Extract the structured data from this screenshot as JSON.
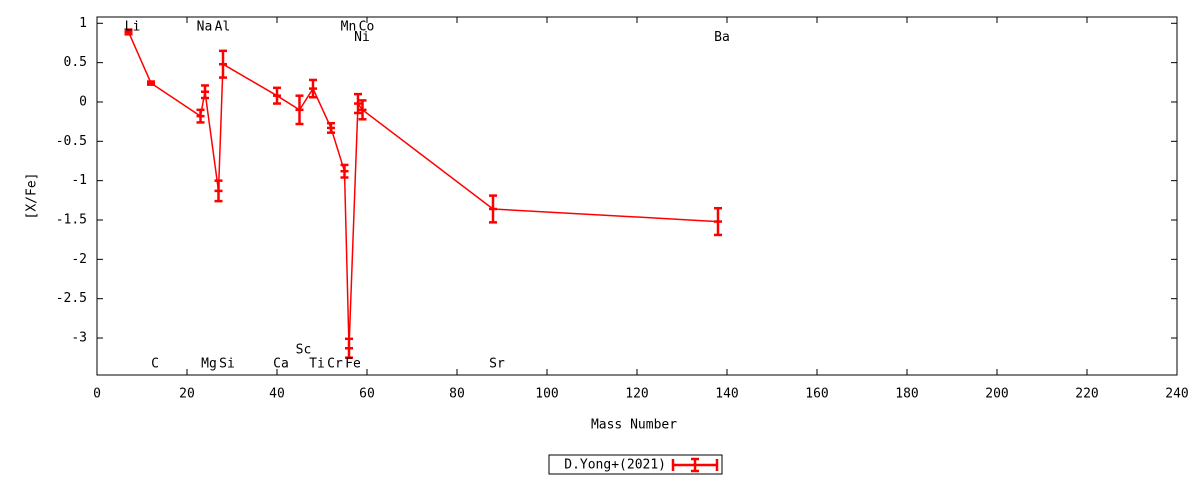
{
  "chart_data": {
    "type": "errorbar-line",
    "xlabel": "Mass Number",
    "ylabel": "[X/Fe]",
    "xlim": [
      0,
      240
    ],
    "xticks": [
      0,
      20,
      40,
      60,
      80,
      100,
      120,
      140,
      160,
      180,
      200,
      220,
      240
    ],
    "ylim": [
      -3.47,
      1.08
    ],
    "yticks": [
      1,
      0.5,
      0,
      -0.5,
      -1,
      -1.5,
      -2,
      -2.5,
      -3
    ],
    "series": [
      {
        "name": "D.Yong+(2021)",
        "color": "#ff0000",
        "x": [
          7,
          12,
          23,
          24,
          27,
          28,
          40,
          45,
          48,
          52,
          55,
          56,
          58,
          59,
          88,
          138
        ],
        "values": [
          0.89,
          0.24,
          -0.18,
          0.13,
          -1.13,
          0.48,
          0.08,
          -0.1,
          0.17,
          -0.33,
          -0.88,
          -3.13,
          -0.02,
          -0.1,
          -1.36,
          -1.52
        ],
        "errors": [
          0.03,
          0.02,
          0.08,
          0.08,
          0.13,
          0.17,
          0.1,
          0.18,
          0.11,
          0.06,
          0.08,
          0.12,
          0.12,
          0.12,
          0.17,
          0.17
        ]
      }
    ],
    "annotations": [
      {
        "text": "Li",
        "x": 7,
        "y": 0.95
      },
      {
        "text": "C",
        "x": 12,
        "y": -3.33
      },
      {
        "text": "Na",
        "x": 23,
        "y": 0.95
      },
      {
        "text": "Mg",
        "x": 24,
        "y": -3.33
      },
      {
        "text": "Al",
        "x": 27,
        "y": 0.95
      },
      {
        "text": "Si",
        "x": 28,
        "y": -3.33
      },
      {
        "text": "Ca",
        "x": 40,
        "y": -3.33
      },
      {
        "text": "Sc",
        "x": 45,
        "y": -3.15
      },
      {
        "text": "Ti",
        "x": 48,
        "y": -3.33
      },
      {
        "text": "Cr",
        "x": 52,
        "y": -3.33
      },
      {
        "text": "Mn",
        "x": 55,
        "y": 0.95
      },
      {
        "text": "Fe",
        "x": 56,
        "y": -3.33
      },
      {
        "text": "Ni",
        "x": 58,
        "y": 0.82
      },
      {
        "text": "Co",
        "x": 59,
        "y": 0.95
      },
      {
        "text": "Sr",
        "x": 88,
        "y": -3.33
      },
      {
        "text": "Ba",
        "x": 138,
        "y": 0.82
      }
    ]
  }
}
